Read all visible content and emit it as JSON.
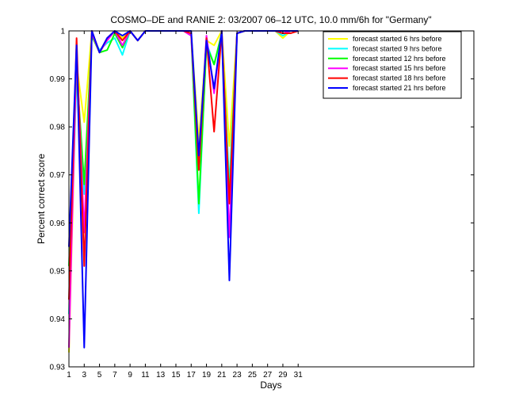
{
  "chart_data": {
    "type": "line",
    "title": "COSMO–DE and RANIE 2: 03/2007 06–12 UTC, 10.0 mm/6h for \"Germany\"",
    "xlabel": "Days",
    "ylabel": "Percent correct score",
    "xlim": [
      1,
      54
    ],
    "ylim": [
      0.93,
      1.0
    ],
    "x_ticks": [
      1,
      3,
      5,
      7,
      9,
      11,
      13,
      15,
      17,
      19,
      21,
      23,
      25,
      27,
      29,
      31
    ],
    "y_ticks": [
      0.93,
      0.94,
      0.95,
      0.96,
      0.97,
      0.98,
      0.99,
      1
    ],
    "y_tick_labels": [
      "0.93",
      "0.94",
      "0.95",
      "0.96",
      "0.97",
      "0.98",
      "0.99",
      "1"
    ],
    "grid": false,
    "legend_position": "top-right",
    "x": [
      1,
      2,
      3,
      4,
      5,
      6,
      7,
      8,
      9,
      10,
      11,
      12,
      13,
      14,
      15,
      16,
      17,
      18,
      19,
      20,
      21,
      22,
      23,
      24,
      25,
      26,
      27,
      28,
      29,
      30,
      31
    ],
    "series": [
      {
        "name": "forecast started 6 hrs before",
        "color": "#ffff00",
        "values": [
          0.933,
          0.993,
          0.981,
          1.0,
          0.9955,
          0.998,
          1.0,
          0.9985,
          1.0,
          0.998,
          1.0,
          1.0,
          1.0,
          1.0,
          1.0,
          1.0,
          0.9995,
          0.977,
          0.998,
          0.997,
          1.0,
          0.976,
          0.9995,
          1.0,
          1.0,
          1.0,
          1.0,
          1.0,
          0.9985,
          1.0,
          1.0
        ]
      },
      {
        "name": "forecast started 9 hrs before",
        "color": "#00ffff",
        "values": [
          0.941,
          0.991,
          0.966,
          0.999,
          0.996,
          0.9975,
          0.9985,
          0.995,
          1.0,
          0.998,
          1.0,
          1.0,
          1.0,
          1.0,
          1.0,
          1.0,
          0.999,
          0.962,
          0.9975,
          0.993,
          0.999,
          0.968,
          0.9995,
          1.0,
          1.0,
          1.0,
          1.0,
          1.0,
          0.999,
          1.0,
          1.0
        ]
      },
      {
        "name": "forecast started 12 hrs before",
        "color": "#00ff00",
        "values": [
          0.951,
          0.992,
          0.968,
          0.999,
          0.9955,
          0.996,
          0.9995,
          0.9965,
          1.0,
          0.998,
          1.0,
          1.0,
          1.0,
          1.0,
          1.0,
          1.0,
          0.9995,
          0.964,
          0.997,
          0.993,
          0.9995,
          0.965,
          0.9995,
          1.0,
          1.0,
          1.0,
          1.0,
          1.0,
          0.9995,
          1.0,
          1.0
        ]
      },
      {
        "name": "forecast started 15 hrs before",
        "color": "#ff00ff",
        "values": [
          0.934,
          0.996,
          0.958,
          0.9995,
          0.9955,
          0.998,
          1.0,
          0.997,
          1.0,
          0.998,
          1.0,
          1.0,
          1.0,
          1.0,
          1.0,
          1.0,
          0.999,
          0.972,
          0.999,
          0.987,
          1.0,
          0.957,
          0.9995,
          1.0,
          1.0,
          1.0,
          1.0,
          1.0,
          0.9995,
          1.0,
          1.0
        ]
      },
      {
        "name": "forecast started 18 hrs before",
        "color": "#ff0000",
        "values": [
          0.944,
          0.9985,
          0.951,
          1.0,
          0.9955,
          0.9985,
          1.0,
          0.998,
          1.0,
          0.998,
          1.0,
          1.0,
          1.0,
          1.0,
          1.0,
          1.0,
          0.9995,
          0.971,
          0.9985,
          0.979,
          1.0,
          0.964,
          0.9995,
          1.0,
          1.0,
          1.0,
          1.0,
          1.0,
          0.9995,
          0.9995,
          1.0
        ]
      },
      {
        "name": "forecast started 21 hrs before",
        "color": "#0000ff",
        "values": [
          0.955,
          0.997,
          0.934,
          1.0,
          0.9955,
          0.9985,
          1.0,
          0.999,
          1.0,
          0.998,
          1.0,
          1.0,
          1.0,
          1.0,
          1.0,
          1.0,
          1.0,
          0.974,
          0.998,
          0.988,
          1.0,
          0.948,
          0.9995,
          1.0,
          1.0,
          1.0,
          1.0,
          1.0,
          1.0,
          1.0,
          1.0
        ]
      }
    ]
  }
}
